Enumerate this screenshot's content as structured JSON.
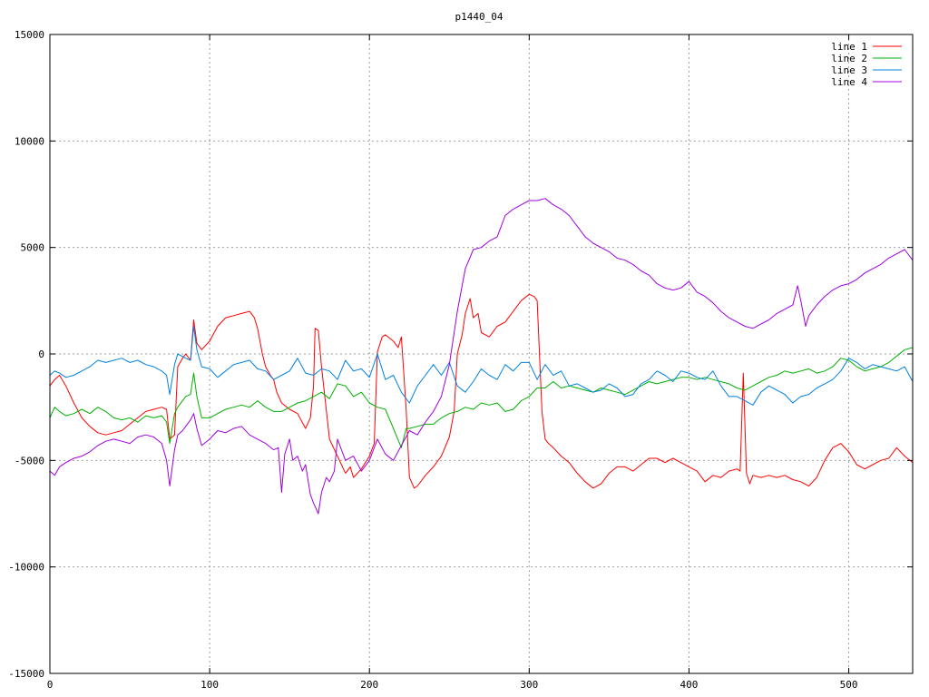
{
  "chart_data": {
    "type": "line",
    "title": "p1440_04",
    "xlabel": "",
    "ylabel": "",
    "xlim": [
      0,
      540
    ],
    "ylim": [
      -15000,
      15000
    ],
    "xticks": [
      0,
      100,
      200,
      300,
      400,
      500
    ],
    "yticks": [
      -15000,
      -10000,
      -5000,
      0,
      5000,
      10000,
      15000
    ],
    "grid": true,
    "legend_position": "top-right",
    "series": [
      {
        "name": "line 1",
        "color": "#ff0000",
        "x": [
          0,
          3,
          6,
          10,
          15,
          20,
          25,
          30,
          35,
          40,
          45,
          50,
          55,
          60,
          65,
          70,
          73,
          75,
          78,
          80,
          83,
          85,
          88,
          90,
          92,
          95,
          100,
          105,
          110,
          115,
          120,
          125,
          128,
          130,
          133,
          135,
          138,
          140,
          142,
          145,
          150,
          155,
          160,
          163,
          165,
          166,
          168,
          170,
          175,
          180,
          185,
          188,
          190,
          195,
          200,
          203,
          205,
          208,
          210,
          215,
          218,
          220,
          223,
          225,
          228,
          230,
          235,
          240,
          245,
          250,
          253,
          255,
          258,
          260,
          263,
          265,
          268,
          270,
          275,
          280,
          285,
          290,
          295,
          300,
          303,
          305,
          308,
          310,
          312,
          315,
          320,
          325,
          330,
          335,
          340,
          345,
          350,
          355,
          360,
          365,
          370,
          375,
          380,
          385,
          390,
          395,
          400,
          405,
          410,
          415,
          420,
          425,
          430,
          432,
          434,
          436,
          438,
          440,
          445,
          450,
          455,
          460,
          465,
          470,
          475,
          480,
          485,
          490,
          495,
          500,
          505,
          510,
          515,
          520,
          525,
          530,
          535,
          540
        ],
        "y": [
          -1500,
          -1200,
          -1000,
          -1500,
          -2300,
          -3000,
          -3400,
          -3700,
          -3800,
          -3700,
          -3600,
          -3300,
          -3000,
          -2700,
          -2600,
          -2500,
          -2600,
          -4000,
          -3800,
          -600,
          -200,
          0,
          -300,
          1600,
          500,
          200,
          600,
          1300,
          1700,
          1800,
          1900,
          2000,
          1700,
          1200,
          0,
          -600,
          -1000,
          -1200,
          -1800,
          -2300,
          -2600,
          -2800,
          -3500,
          -3000,
          -1500,
          1200,
          1100,
          -600,
          -4000,
          -4800,
          -5600,
          -5300,
          -5800,
          -5400,
          -4800,
          -4200,
          100,
          800,
          900,
          600,
          300,
          800,
          -2600,
          -5800,
          -6300,
          -6200,
          -5700,
          -5300,
          -4800,
          -3900,
          -2700,
          0,
          900,
          1900,
          2600,
          1700,
          1900,
          1000,
          800,
          1300,
          1500,
          2000,
          2500,
          2800,
          2700,
          2500,
          -2700,
          -4000,
          -4200,
          -4400,
          -4800,
          -5100,
          -5600,
          -6000,
          -6300,
          -6100,
          -5600,
          -5300,
          -5300,
          -5500,
          -5200,
          -4900,
          -4900,
          -5100,
          -4900,
          -5100,
          -5300,
          -5500,
          -6000,
          -5700,
          -5800,
          -5500,
          -5400,
          -5500,
          -900,
          -5600,
          -6100,
          -5700,
          -5800,
          -5700,
          -5800,
          -5700,
          -5900,
          -6000,
          -6200,
          -5800,
          -5000,
          -4400,
          -4200,
          -4600,
          -5200,
          -5400,
          -5200,
          -5000,
          -4900,
          -4400,
          -4800,
          -5100
        ]
      },
      {
        "name": "line 2",
        "color": "#00b000",
        "x": [
          0,
          3,
          6,
          10,
          15,
          20,
          25,
          30,
          35,
          40,
          45,
          50,
          55,
          60,
          65,
          70,
          73,
          75,
          78,
          80,
          83,
          85,
          88,
          90,
          92,
          95,
          100,
          105,
          110,
          115,
          120,
          125,
          130,
          135,
          140,
          145,
          150,
          155,
          160,
          165,
          170,
          175,
          180,
          185,
          190,
          195,
          200,
          205,
          210,
          215,
          220,
          223,
          225,
          230,
          235,
          240,
          245,
          250,
          255,
          260,
          265,
          270,
          275,
          280,
          285,
          290,
          295,
          300,
          305,
          310,
          315,
          320,
          325,
          330,
          335,
          340,
          345,
          350,
          355,
          360,
          365,
          370,
          375,
          380,
          385,
          390,
          395,
          400,
          405,
          410,
          415,
          420,
          425,
          430,
          435,
          440,
          445,
          450,
          455,
          460,
          465,
          470,
          475,
          480,
          485,
          490,
          495,
          500,
          505,
          510,
          515,
          520,
          525,
          530,
          535,
          540
        ],
        "y": [
          -3000,
          -2500,
          -2700,
          -2900,
          -2800,
          -2600,
          -2800,
          -2500,
          -2700,
          -3000,
          -3100,
          -3000,
          -3200,
          -2900,
          -3000,
          -2900,
          -3200,
          -4200,
          -2800,
          -2500,
          -2200,
          -2000,
          -1900,
          -900,
          -2000,
          -3000,
          -3000,
          -2800,
          -2600,
          -2500,
          -2400,
          -2500,
          -2200,
          -2500,
          -2700,
          -2700,
          -2500,
          -2300,
          -2200,
          -2000,
          -1800,
          -2100,
          -1400,
          -1500,
          -2000,
          -1800,
          -2300,
          -2500,
          -2600,
          -3500,
          -4400,
          -3500,
          -3500,
          -3400,
          -3300,
          -3300,
          -3000,
          -2800,
          -2700,
          -2500,
          -2600,
          -2300,
          -2400,
          -2300,
          -2700,
          -2600,
          -2200,
          -2000,
          -1600,
          -1600,
          -1300,
          -1600,
          -1500,
          -1600,
          -1700,
          -1800,
          -1600,
          -1700,
          -1800,
          -1900,
          -1700,
          -1500,
          -1300,
          -1400,
          -1300,
          -1200,
          -1100,
          -1100,
          -1200,
          -1100,
          -1200,
          -1300,
          -1400,
          -1600,
          -1700,
          -1500,
          -1300,
          -1100,
          -1000,
          -800,
          -900,
          -800,
          -700,
          -900,
          -800,
          -600,
          -200,
          -300,
          -600,
          -800,
          -700,
          -600,
          -400,
          -100,
          200,
          300
        ]
      },
      {
        "name": "line 3",
        "color": "#0080e0",
        "x": [
          0,
          3,
          6,
          10,
          15,
          20,
          25,
          30,
          35,
          40,
          45,
          50,
          55,
          60,
          65,
          70,
          73,
          75,
          78,
          80,
          85,
          88,
          90,
          92,
          95,
          100,
          105,
          110,
          115,
          120,
          125,
          130,
          135,
          140,
          145,
          150,
          155,
          160,
          165,
          170,
          175,
          180,
          185,
          190,
          195,
          200,
          205,
          210,
          215,
          220,
          225,
          230,
          235,
          240,
          245,
          250,
          255,
          260,
          265,
          270,
          275,
          280,
          285,
          290,
          295,
          300,
          305,
          310,
          315,
          320,
          325,
          330,
          335,
          340,
          345,
          350,
          355,
          360,
          365,
          370,
          375,
          380,
          385,
          390,
          395,
          400,
          405,
          410,
          415,
          420,
          425,
          430,
          435,
          440,
          445,
          450,
          455,
          460,
          465,
          470,
          475,
          480,
          485,
          490,
          495,
          500,
          505,
          510,
          515,
          520,
          525,
          530,
          535,
          540
        ],
        "y": [
          -1000,
          -800,
          -900,
          -1100,
          -1000,
          -800,
          -600,
          -300,
          -400,
          -300,
          -200,
          -400,
          -300,
          -500,
          -600,
          -800,
          -1000,
          -1900,
          -500,
          0,
          -200,
          -300,
          1300,
          200,
          -600,
          -700,
          -1100,
          -800,
          -500,
          -400,
          -300,
          -700,
          -800,
          -1200,
          -1000,
          -800,
          -200,
          -900,
          -1000,
          -700,
          -800,
          -1200,
          -300,
          -800,
          -700,
          -1100,
          0,
          -1200,
          -1000,
          -1800,
          -2300,
          -1500,
          -1000,
          -500,
          -1000,
          -400,
          -1500,
          -1800,
          -1300,
          -700,
          -1000,
          -1200,
          -500,
          -800,
          -400,
          -400,
          -1200,
          -500,
          -1000,
          -800,
          -1500,
          -1400,
          -1600,
          -1800,
          -1700,
          -1400,
          -1600,
          -2000,
          -1900,
          -1400,
          -1200,
          -800,
          -1000,
          -1300,
          -800,
          -900,
          -1100,
          -1200,
          -800,
          -1500,
          -2000,
          -2000,
          -2200,
          -2400,
          -1800,
          -1500,
          -1700,
          -1900,
          -2300,
          -2000,
          -1900,
          -1600,
          -1400,
          -1200,
          -800,
          -200,
          -400,
          -700,
          -500,
          -600,
          -700,
          -800,
          -600,
          -1300
        ]
      },
      {
        "name": "line 4",
        "color": "#a000e0",
        "x": [
          0,
          3,
          6,
          10,
          15,
          20,
          25,
          30,
          35,
          40,
          45,
          50,
          55,
          60,
          65,
          70,
          73,
          75,
          78,
          80,
          83,
          85,
          88,
          90,
          92,
          95,
          100,
          105,
          110,
          115,
          120,
          125,
          130,
          135,
          140,
          143,
          145,
          147,
          150,
          152,
          155,
          158,
          160,
          163,
          165,
          168,
          170,
          173,
          175,
          178,
          180,
          185,
          190,
          195,
          200,
          205,
          210,
          215,
          220,
          225,
          230,
          235,
          240,
          245,
          250,
          255,
          260,
          265,
          270,
          275,
          280,
          285,
          290,
          295,
          300,
          305,
          310,
          315,
          320,
          325,
          330,
          335,
          340,
          345,
          350,
          355,
          360,
          365,
          370,
          375,
          380,
          385,
          390,
          395,
          400,
          405,
          410,
          415,
          420,
          425,
          430,
          435,
          440,
          445,
          450,
          455,
          460,
          465,
          468,
          470,
          473,
          475,
          480,
          485,
          490,
          495,
          500,
          505,
          510,
          515,
          520,
          525,
          530,
          535,
          540
        ],
        "y": [
          -5500,
          -5700,
          -5300,
          -5100,
          -4900,
          -4800,
          -4600,
          -4300,
          -4100,
          -4000,
          -4100,
          -4200,
          -3900,
          -3800,
          -3900,
          -4200,
          -5000,
          -6200,
          -4500,
          -3800,
          -3600,
          -3400,
          -3100,
          -2800,
          -3500,
          -4300,
          -4000,
          -3600,
          -3700,
          -3500,
          -3400,
          -3800,
          -4000,
          -4200,
          -4500,
          -4400,
          -6500,
          -4700,
          -4000,
          -5000,
          -4800,
          -5500,
          -5200,
          -6600,
          -7000,
          -7500,
          -6500,
          -5800,
          -6000,
          -5500,
          -4000,
          -5000,
          -4800,
          -5500,
          -5000,
          -4000,
          -4700,
          -5000,
          -4300,
          -3600,
          -3800,
          -3200,
          -2700,
          -2000,
          -500,
          2000,
          4000,
          4900,
          5000,
          5300,
          5500,
          6500,
          6800,
          7000,
          7200,
          7200,
          7300,
          7000,
          6800,
          6500,
          6000,
          5500,
          5200,
          5000,
          4800,
          4500,
          4400,
          4200,
          3900,
          3700,
          3300,
          3100,
          3000,
          3100,
          3400,
          2900,
          2700,
          2400,
          2000,
          1700,
          1500,
          1300,
          1200,
          1400,
          1600,
          1900,
          2100,
          2300,
          3200,
          2500,
          1300,
          1800,
          2300,
          2700,
          3000,
          3200,
          3300,
          3500,
          3800,
          4000,
          4200,
          4500,
          4700,
          4900,
          4400
        ]
      }
    ]
  }
}
